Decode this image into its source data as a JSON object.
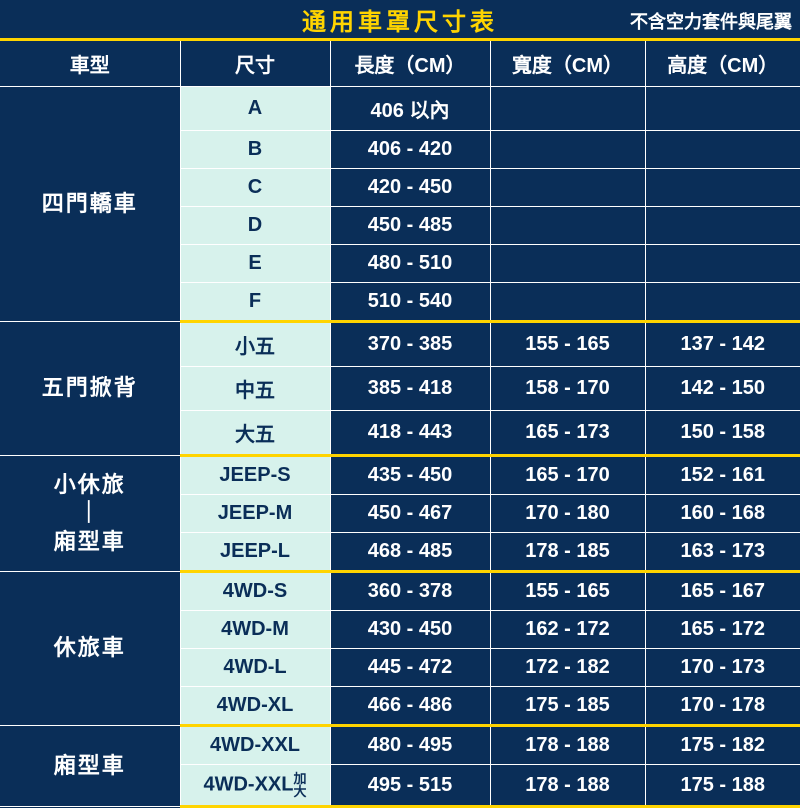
{
  "title": "通用車罩尺寸表",
  "subtitle": "不含空力套件與尾翼",
  "columns": [
    "車型",
    "尺寸",
    "長度（CM）",
    "寬度（CM）",
    "高度（CM）"
  ],
  "groups": [
    {
      "category": "四門轎車",
      "rows": [
        {
          "size": "A",
          "length": "406 以內",
          "width": "",
          "height": ""
        },
        {
          "size": "B",
          "length": "406 - 420",
          "width": "",
          "height": ""
        },
        {
          "size": "C",
          "length": "420 - 450",
          "width": "",
          "height": ""
        },
        {
          "size": "D",
          "length": "450 - 485",
          "width": "",
          "height": ""
        },
        {
          "size": "E",
          "length": "480 - 510",
          "width": "",
          "height": ""
        },
        {
          "size": "F",
          "length": "510 - 540",
          "width": "",
          "height": ""
        }
      ]
    },
    {
      "category": "五門掀背",
      "rows": [
        {
          "size": "小五",
          "length": "370 - 385",
          "width": "155 - 165",
          "height": "137 - 142"
        },
        {
          "size": "中五",
          "length": "385 - 418",
          "width": "158 - 170",
          "height": "142 - 150"
        },
        {
          "size": "大五",
          "length": "418 - 443",
          "width": "165 - 173",
          "height": "150 - 158"
        }
      ]
    },
    {
      "category": "小休旅\n｜\n廂型車",
      "rows": [
        {
          "size": "JEEP-S",
          "length": "435 - 450",
          "width": "165 - 170",
          "height": "152 - 161"
        },
        {
          "size": "JEEP-M",
          "length": "450 - 467",
          "width": "170 - 180",
          "height": "160 - 168"
        },
        {
          "size": "JEEP-L",
          "length": "468 - 485",
          "width": "178 - 185",
          "height": "163 - 173"
        }
      ]
    },
    {
      "category": "休旅車",
      "rows": [
        {
          "size": "4WD-S",
          "length": "360 - 378",
          "width": "155 - 165",
          "height": "165 - 167"
        },
        {
          "size": "4WD-M",
          "length": "430 - 450",
          "width": "162 - 172",
          "height": "165 - 172"
        },
        {
          "size": "4WD-L",
          "length": "445 - 472",
          "width": "172 - 182",
          "height": "170 - 173"
        },
        {
          "size": "4WD-XL",
          "length": "466 - 486",
          "width": "175 - 185",
          "height": "170 - 178"
        }
      ]
    },
    {
      "category": "廂型車",
      "rows": [
        {
          "size": "4WD-XXL",
          "length": "480 - 495",
          "width": "178 - 188",
          "height": "175 - 182"
        },
        {
          "size": "4WD-XXL",
          "size_suffix": "加\n大",
          "length": "495 - 515",
          "width": "178 - 188",
          "height": "175 - 188"
        }
      ]
    }
  ],
  "colors": {
    "bg_dark": "#0a2e58",
    "accent_yellow": "#ffd400",
    "size_col_bg": "#d7f2ec",
    "text_light": "#ffffff"
  }
}
